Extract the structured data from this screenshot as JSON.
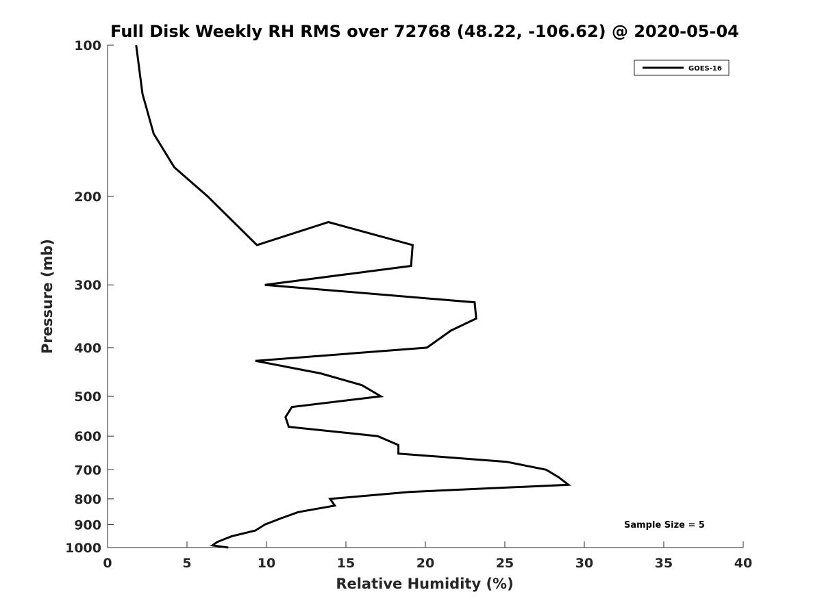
{
  "chart_data": {
    "type": "line",
    "title": "Full Disk Weekly RH RMS over 72768 (48.22, -106.62) @ 2020-05-04",
    "xlabel": "Relative Humidity (%)",
    "ylabel": "Pressure (mb)",
    "xlim": [
      0,
      40
    ],
    "ylim": [
      100,
      1000
    ],
    "y_scale": "log",
    "y_reversed": true,
    "grid": false,
    "legend_position": "top-right",
    "x_ticks": [
      0,
      5,
      10,
      15,
      20,
      25,
      30,
      35,
      40
    ],
    "y_ticks": [
      100,
      200,
      300,
      400,
      500,
      600,
      700,
      800,
      900,
      1000
    ],
    "series": [
      {
        "name": "GOES-16",
        "color": "#000000",
        "points": [
          {
            "x": 1.8,
            "y": 100
          },
          {
            "x": 2.2,
            "y": 125
          },
          {
            "x": 2.9,
            "y": 150
          },
          {
            "x": 4.2,
            "y": 175
          },
          {
            "x": 6.3,
            "y": 200
          },
          {
            "x": 9.4,
            "y": 250
          },
          {
            "x": 13.9,
            "y": 225
          },
          {
            "x": 19.2,
            "y": 250
          },
          {
            "x": 19.1,
            "y": 275
          },
          {
            "x": 9.9,
            "y": 300
          },
          {
            "x": 23.1,
            "y": 325
          },
          {
            "x": 23.2,
            "y": 350
          },
          {
            "x": 21.6,
            "y": 370
          },
          {
            "x": 20.1,
            "y": 400
          },
          {
            "x": 9.3,
            "y": 425
          },
          {
            "x": 13.4,
            "y": 450
          },
          {
            "x": 16.0,
            "y": 475
          },
          {
            "x": 17.2,
            "y": 500
          },
          {
            "x": 11.6,
            "y": 525
          },
          {
            "x": 11.2,
            "y": 550
          },
          {
            "x": 11.4,
            "y": 575
          },
          {
            "x": 17.0,
            "y": 600
          },
          {
            "x": 18.3,
            "y": 625
          },
          {
            "x": 18.3,
            "y": 650
          },
          {
            "x": 25.1,
            "y": 675
          },
          {
            "x": 27.6,
            "y": 700
          },
          {
            "x": 28.4,
            "y": 725
          },
          {
            "x": 29.0,
            "y": 750
          },
          {
            "x": 19.0,
            "y": 775
          },
          {
            "x": 14.0,
            "y": 800
          },
          {
            "x": 14.3,
            "y": 825
          },
          {
            "x": 12.0,
            "y": 850
          },
          {
            "x": 10.9,
            "y": 875
          },
          {
            "x": 9.9,
            "y": 900
          },
          {
            "x": 9.3,
            "y": 925
          },
          {
            "x": 7.8,
            "y": 950
          },
          {
            "x": 6.9,
            "y": 975
          },
          {
            "x": 6.6,
            "y": 990
          },
          {
            "x": 7.6,
            "y": 1000
          }
        ]
      }
    ],
    "annotation": "Sample Size = 5"
  }
}
